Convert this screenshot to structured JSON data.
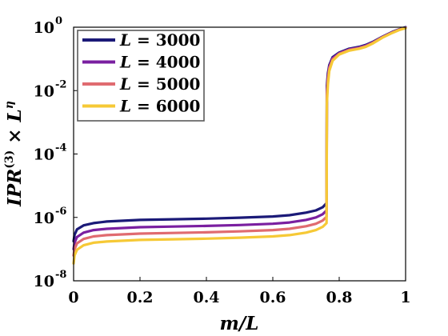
{
  "chart_data": {
    "type": "line",
    "xlabel": "m/L",
    "ylabel_parts": [
      "IPR",
      "(3)",
      " × L",
      "η"
    ],
    "xlim": [
      0,
      1
    ],
    "ylim_log10": [
      -8,
      0
    ],
    "yscale": "log",
    "xticks": [
      "0",
      "0.2",
      "0.4",
      "0.6",
      "0.8",
      "1"
    ],
    "xtick_values": [
      0,
      0.2,
      0.4,
      0.6,
      0.8,
      1
    ],
    "yticks": [
      {
        "base": "10",
        "exp": "0",
        "value": 0
      },
      {
        "base": "10",
        "exp": "-2",
        "value": -2
      },
      {
        "base": "10",
        "exp": "-4",
        "value": -4
      },
      {
        "base": "10",
        "exp": "-6",
        "value": -6
      },
      {
        "base": "10",
        "exp": "-8",
        "value": -8
      }
    ],
    "grid": false,
    "legend_position": "top-left",
    "series": [
      {
        "name": "L = 3000",
        "name_var": "L",
        "name_rest": " = 3000",
        "color": "#1b1a78",
        "points": [
          [
            0,
            -6.75
          ],
          [
            0.003,
            -6.55
          ],
          [
            0.01,
            -6.38
          ],
          [
            0.03,
            -6.25
          ],
          [
            0.06,
            -6.18
          ],
          [
            0.1,
            -6.13
          ],
          [
            0.2,
            -6.08
          ],
          [
            0.3,
            -6.06
          ],
          [
            0.4,
            -6.04
          ],
          [
            0.5,
            -6.01
          ],
          [
            0.6,
            -5.97
          ],
          [
            0.65,
            -5.93
          ],
          [
            0.7,
            -5.85
          ],
          [
            0.73,
            -5.78
          ],
          [
            0.75,
            -5.68
          ],
          [
            0.762,
            -5.55
          ],
          [
            0.763,
            -1.85
          ],
          [
            0.766,
            -1.45
          ],
          [
            0.77,
            -1.2
          ],
          [
            0.78,
            -0.95
          ],
          [
            0.8,
            -0.8
          ],
          [
            0.83,
            -0.68
          ],
          [
            0.86,
            -0.62
          ],
          [
            0.88,
            -0.56
          ],
          [
            0.9,
            -0.47
          ],
          [
            0.93,
            -0.3
          ],
          [
            0.96,
            -0.15
          ],
          [
            0.98,
            -0.07
          ],
          [
            1,
            0
          ]
        ]
      },
      {
        "name": "L = 4000",
        "name_var": "L",
        "name_rest": " = 4000",
        "color": "#7a1fa0",
        "points": [
          [
            0,
            -7.0
          ],
          [
            0.003,
            -6.8
          ],
          [
            0.01,
            -6.62
          ],
          [
            0.03,
            -6.48
          ],
          [
            0.06,
            -6.4
          ],
          [
            0.1,
            -6.36
          ],
          [
            0.2,
            -6.31
          ],
          [
            0.3,
            -6.29
          ],
          [
            0.4,
            -6.27
          ],
          [
            0.5,
            -6.24
          ],
          [
            0.6,
            -6.2
          ],
          [
            0.65,
            -6.16
          ],
          [
            0.7,
            -6.08
          ],
          [
            0.73,
            -6.0
          ],
          [
            0.75,
            -5.9
          ],
          [
            0.762,
            -5.78
          ],
          [
            0.763,
            -2.0
          ],
          [
            0.766,
            -1.55
          ],
          [
            0.77,
            -1.25
          ],
          [
            0.78,
            -0.98
          ],
          [
            0.8,
            -0.82
          ],
          [
            0.83,
            -0.7
          ],
          [
            0.86,
            -0.64
          ],
          [
            0.88,
            -0.58
          ],
          [
            0.9,
            -0.49
          ],
          [
            0.93,
            -0.31
          ],
          [
            0.96,
            -0.16
          ],
          [
            0.98,
            -0.08
          ],
          [
            1,
            -0.01
          ]
        ]
      },
      {
        "name": "L = 5000",
        "name_var": "L",
        "name_rest": " = 5000",
        "color": "#e06b70",
        "points": [
          [
            0,
            -7.2
          ],
          [
            0.003,
            -7.0
          ],
          [
            0.01,
            -6.82
          ],
          [
            0.03,
            -6.68
          ],
          [
            0.06,
            -6.6
          ],
          [
            0.1,
            -6.56
          ],
          [
            0.2,
            -6.51
          ],
          [
            0.3,
            -6.49
          ],
          [
            0.4,
            -6.47
          ],
          [
            0.5,
            -6.44
          ],
          [
            0.6,
            -6.4
          ],
          [
            0.65,
            -6.36
          ],
          [
            0.7,
            -6.28
          ],
          [
            0.73,
            -6.2
          ],
          [
            0.75,
            -6.1
          ],
          [
            0.762,
            -5.98
          ],
          [
            0.763,
            -2.15
          ],
          [
            0.766,
            -1.65
          ],
          [
            0.77,
            -1.3
          ],
          [
            0.78,
            -1.02
          ],
          [
            0.8,
            -0.84
          ],
          [
            0.83,
            -0.72
          ],
          [
            0.86,
            -0.66
          ],
          [
            0.88,
            -0.6
          ],
          [
            0.9,
            -0.5
          ],
          [
            0.93,
            -0.32
          ],
          [
            0.96,
            -0.17
          ],
          [
            0.98,
            -0.08
          ],
          [
            1,
            -0.02
          ]
        ]
      },
      {
        "name": "L = 6000",
        "name_var": "L",
        "name_rest": " = 6000",
        "color": "#f6c936",
        "points": [
          [
            0,
            -7.45
          ],
          [
            0.003,
            -7.2
          ],
          [
            0.01,
            -7.02
          ],
          [
            0.03,
            -6.88
          ],
          [
            0.06,
            -6.8
          ],
          [
            0.1,
            -6.76
          ],
          [
            0.2,
            -6.71
          ],
          [
            0.3,
            -6.69
          ],
          [
            0.4,
            -6.67
          ],
          [
            0.5,
            -6.64
          ],
          [
            0.6,
            -6.6
          ],
          [
            0.65,
            -6.56
          ],
          [
            0.7,
            -6.48
          ],
          [
            0.73,
            -6.4
          ],
          [
            0.75,
            -6.3
          ],
          [
            0.762,
            -6.18
          ],
          [
            0.763,
            -2.4
          ],
          [
            0.766,
            -1.8
          ],
          [
            0.77,
            -1.38
          ],
          [
            0.78,
            -1.06
          ],
          [
            0.8,
            -0.86
          ],
          [
            0.83,
            -0.74
          ],
          [
            0.86,
            -0.68
          ],
          [
            0.88,
            -0.62
          ],
          [
            0.9,
            -0.52
          ],
          [
            0.93,
            -0.33
          ],
          [
            0.96,
            -0.18
          ],
          [
            0.98,
            -0.09
          ],
          [
            1,
            -0.03
          ]
        ]
      }
    ]
  }
}
